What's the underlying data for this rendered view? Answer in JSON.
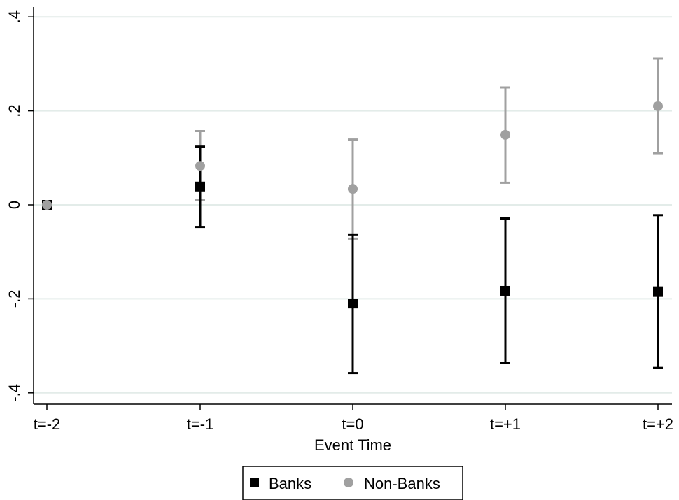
{
  "chart_data": {
    "type": "scatter",
    "title": "",
    "xlabel": "Event Time",
    "ylabel": "",
    "categories": [
      "t=-2",
      "t=-1",
      "t=0",
      "t=+1",
      "t=+2"
    ],
    "y_ticks": [
      ".4",
      ".2",
      "0",
      "-.2",
      "-.4"
    ],
    "y_tick_values": [
      0.4,
      0.2,
      0,
      -0.2,
      -0.4
    ],
    "ylim": [
      -0.42,
      0.41
    ],
    "grid": true,
    "legend_position": "bottom",
    "series": [
      {
        "name": "Banks",
        "marker": "square",
        "color": "#000000",
        "values": [
          0,
          0.039,
          -0.21,
          -0.183,
          -0.184
        ],
        "ci_low": [
          null,
          -0.047,
          -0.358,
          -0.337,
          -0.347
        ],
        "ci_high": [
          null,
          0.124,
          -0.063,
          -0.029,
          -0.022
        ]
      },
      {
        "name": "Non-Banks",
        "marker": "circle",
        "color": "#a0a0a0",
        "values": [
          0,
          0.083,
          0.034,
          0.149,
          0.21
        ],
        "ci_low": [
          null,
          0.01,
          -0.072,
          0.047,
          0.11
        ],
        "ci_high": [
          null,
          0.157,
          0.139,
          0.25,
          0.311
        ]
      }
    ]
  }
}
